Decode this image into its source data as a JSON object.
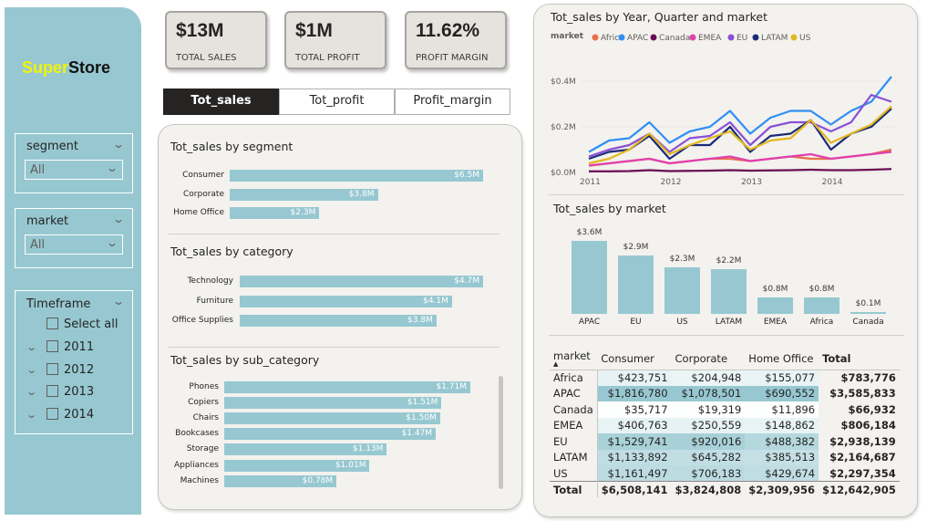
{
  "brand": {
    "part1": "Super",
    "part2": "Store"
  },
  "slicers": {
    "segment": {
      "title": "segment",
      "value": "All"
    },
    "market": {
      "title": "market",
      "value": "All"
    },
    "timeframe": {
      "title": "Timeframe",
      "select_all": "Select all",
      "years": [
        "2011",
        "2012",
        "2013",
        "2014"
      ]
    }
  },
  "kpis": [
    {
      "value": "$13M",
      "label": "TOTAL SALES"
    },
    {
      "value": "$1M",
      "label": "TOTAL PROFIT"
    },
    {
      "value": "11.62%",
      "label": "PROFIT MARGIN"
    }
  ],
  "tabs": [
    "Tot_sales",
    "Tot_profit",
    "Profit_margin"
  ],
  "colors": {
    "bar": "#97c8d1",
    "sidebar": "#97c8d1"
  },
  "chart_data": [
    {
      "type": "bar",
      "orientation": "horizontal",
      "title": "Tot_sales by segment",
      "categories": [
        "Consumer",
        "Corporate",
        "Home Office"
      ],
      "values": [
        6.5,
        3.8,
        2.3
      ],
      "labels": [
        "$6.5M",
        "$3.8M",
        "$2.3M"
      ],
      "unit": "$M"
    },
    {
      "type": "bar",
      "orientation": "horizontal",
      "title": "Tot_sales by category",
      "categories": [
        "Technology",
        "Furniture",
        "Office Supplies"
      ],
      "values": [
        4.7,
        4.1,
        3.8
      ],
      "labels": [
        "$4.7M",
        "$4.1M",
        "$3.8M"
      ],
      "unit": "$M"
    },
    {
      "type": "bar",
      "orientation": "horizontal",
      "title": "Tot_sales by sub_category",
      "categories": [
        "Phones",
        "Copiers",
        "Chairs",
        "Bookcases",
        "Storage",
        "Appliances",
        "Machines"
      ],
      "values": [
        1.71,
        1.51,
        1.5,
        1.47,
        1.13,
        1.01,
        0.78
      ],
      "labels": [
        "$1.71M",
        "$1.51M",
        "$1.50M",
        "$1.47M",
        "$1.13M",
        "$1.01M",
        "$0.78M"
      ],
      "unit": "$M"
    },
    {
      "type": "line",
      "title": "Tot_sales by Year, Quarter and market",
      "legend_title": "market",
      "x_tick_labels": [
        "2011",
        "2012",
        "2013",
        "2014"
      ],
      "y_tick_labels": [
        "$0.0M",
        "$0.2M",
        "$0.4M"
      ],
      "ylim": [
        0,
        0.42
      ],
      "series": [
        {
          "name": "Africa",
          "color": "#e8704a",
          "values": [
            0.03,
            0.04,
            0.05,
            0.06,
            0.04,
            0.05,
            0.06,
            0.06,
            0.05,
            0.06,
            0.07,
            0.06,
            0.06,
            0.07,
            0.08,
            0.1
          ]
        },
        {
          "name": "APAC",
          "color": "#2f8ff2",
          "values": [
            0.09,
            0.14,
            0.15,
            0.22,
            0.13,
            0.18,
            0.2,
            0.27,
            0.17,
            0.24,
            0.27,
            0.27,
            0.21,
            0.27,
            0.31,
            0.42
          ]
        },
        {
          "name": "Canada",
          "color": "#6b0d55",
          "values": [
            0.005,
            0.005,
            0.006,
            0.01,
            0.006,
            0.007,
            0.008,
            0.01,
            0.008,
            0.009,
            0.01,
            0.012,
            0.01,
            0.01,
            0.012,
            0.015
          ]
        },
        {
          "name": "EMEA",
          "color": "#e040b0",
          "values": [
            0.03,
            0.04,
            0.05,
            0.06,
            0.04,
            0.05,
            0.06,
            0.07,
            0.05,
            0.06,
            0.07,
            0.08,
            0.06,
            0.07,
            0.08,
            0.09
          ]
        },
        {
          "name": "EU",
          "color": "#8a4fd6",
          "values": [
            0.07,
            0.1,
            0.12,
            0.17,
            0.09,
            0.15,
            0.16,
            0.22,
            0.12,
            0.2,
            0.22,
            0.22,
            0.18,
            0.22,
            0.34,
            0.31
          ]
        },
        {
          "name": "LATAM",
          "color": "#1b2a7a",
          "values": [
            0.06,
            0.09,
            0.1,
            0.16,
            0.06,
            0.12,
            0.12,
            0.2,
            0.09,
            0.16,
            0.17,
            0.23,
            0.1,
            0.17,
            0.2,
            0.28
          ]
        },
        {
          "name": "US",
          "color": "#e2b81f",
          "values": [
            0.04,
            0.06,
            0.1,
            0.17,
            0.08,
            0.12,
            0.15,
            0.18,
            0.1,
            0.14,
            0.15,
            0.23,
            0.13,
            0.17,
            0.21,
            0.29
          ]
        }
      ]
    },
    {
      "type": "bar",
      "orientation": "vertical",
      "title": "Tot_sales by market",
      "categories": [
        "APAC",
        "EU",
        "US",
        "LATAM",
        "EMEA",
        "Africa",
        "Canada"
      ],
      "values": [
        3.6,
        2.9,
        2.3,
        2.2,
        0.8,
        0.8,
        0.1
      ],
      "labels": [
        "$3.6M",
        "$2.9M",
        "$2.3M",
        "$2.2M",
        "$0.8M",
        "$0.8M",
        "$0.1M"
      ],
      "unit": "$M"
    }
  ],
  "matrix": {
    "headers": [
      "market",
      "Consumer",
      "Corporate",
      "Home Office",
      "Total"
    ],
    "rows": [
      [
        "Africa",
        "$423,751",
        "$204,948",
        "$155,077",
        "$783,776"
      ],
      [
        "APAC",
        "$1,816,780",
        "$1,078,501",
        "$690,552",
        "$3,585,833"
      ],
      [
        "Canada",
        "$35,717",
        "$19,319",
        "$11,896",
        "$66,932"
      ],
      [
        "EMEA",
        "$406,763",
        "$250,559",
        "$148,862",
        "$806,184"
      ],
      [
        "EU",
        "$1,529,741",
        "$920,016",
        "$488,382",
        "$2,938,139"
      ],
      [
        "LATAM",
        "$1,133,892",
        "$645,282",
        "$385,513",
        "$2,164,687"
      ],
      [
        "US",
        "$1,161,497",
        "$706,183",
        "$429,674",
        "$2,297,354"
      ]
    ],
    "heat": [
      [
        0.23,
        0.19,
        0.22
      ],
      [
        1.0,
        1.0,
        1.0
      ],
      [
        0.02,
        0.02,
        0.02
      ],
      [
        0.22,
        0.23,
        0.22
      ],
      [
        0.84,
        0.85,
        0.71
      ],
      [
        0.62,
        0.6,
        0.56
      ],
      [
        0.64,
        0.65,
        0.62
      ]
    ],
    "total": [
      "Total",
      "$6,508,141",
      "$3,824,808",
      "$2,309,956",
      "$12,642,905"
    ]
  }
}
